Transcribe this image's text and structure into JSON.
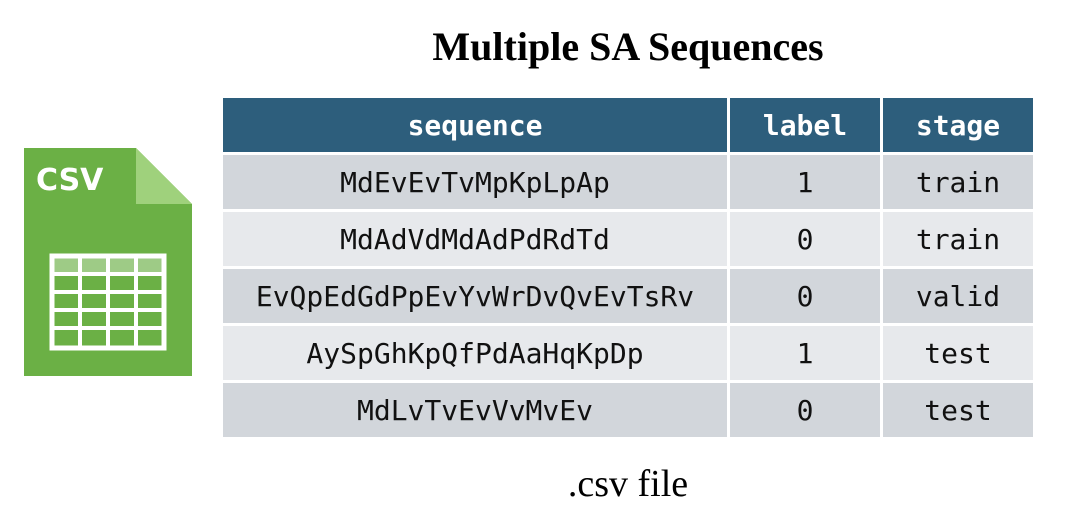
{
  "title": "Multiple SA Sequences",
  "icon": {
    "label": "CSV",
    "name": "csv-file-icon",
    "color": "#6bb045"
  },
  "table": {
    "headers": [
      "sequence",
      "label",
      "stage"
    ],
    "rows": [
      [
        "MdEvEvTvMpKpLpAp",
        "1",
        "train"
      ],
      [
        "MdAdVdMdAdPdRdTd",
        "0",
        "train"
      ],
      [
        "EvQpEdGdPpEvYvWrDvQvEvTsRv",
        "0",
        "valid"
      ],
      [
        "AySpGhKpQfPdAaHqKpDp",
        "1",
        "test"
      ],
      [
        "MdLvTvEvVvMvEv",
        "0",
        "test"
      ]
    ],
    "header_color": "#2d5e7c",
    "row_colors": [
      "#d2d6db",
      "#e7e9ec"
    ]
  },
  "caption": ".csv file"
}
